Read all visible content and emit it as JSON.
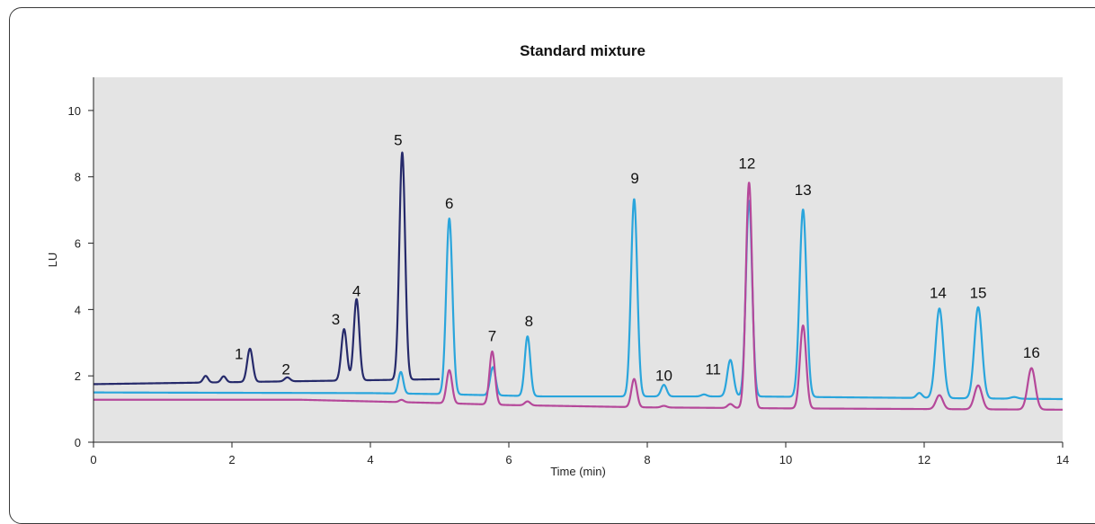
{
  "chart_data": {
    "type": "line",
    "title": "Standard mixture",
    "xlabel": "Time (min)",
    "ylabel": "LU",
    "xlim": [
      0,
      14
    ],
    "ylim": [
      0,
      11
    ],
    "xticks": [
      0,
      2,
      4,
      6,
      8,
      10,
      12,
      14
    ],
    "yticks": [
      0,
      2,
      4,
      6,
      8,
      10
    ],
    "grid": false,
    "plot_background": "#e4e4e4",
    "series": [
      {
        "color": "#262a6b",
        "x_range": [
          0,
          5.0
        ],
        "baseline": [
          [
            0,
            1.75
          ],
          [
            5.0,
            1.9
          ]
        ],
        "peaks": [
          {
            "t": 1.62,
            "h": 0.2,
            "w": 0.035
          },
          {
            "t": 1.88,
            "h": 0.18,
            "w": 0.035
          },
          {
            "t": 2.26,
            "h": 1.0,
            "w": 0.04
          },
          {
            "t": 2.8,
            "h": 0.12,
            "w": 0.04
          },
          {
            "t": 3.62,
            "h": 1.55,
            "w": 0.04
          },
          {
            "t": 3.8,
            "h": 2.45,
            "w": 0.04
          },
          {
            "t": 4.46,
            "h": 6.85,
            "w": 0.042
          }
        ]
      },
      {
        "color": "#2aa5dc",
        "x_range": [
          0,
          14
        ],
        "baseline": [
          [
            0,
            1.5
          ],
          [
            4.0,
            1.48
          ],
          [
            5.0,
            1.45
          ],
          [
            6.5,
            1.38
          ],
          [
            8.0,
            1.38
          ],
          [
            9.5,
            1.38
          ],
          [
            11.0,
            1.35
          ],
          [
            14.0,
            1.3
          ]
        ],
        "peaks": [
          {
            "t": 4.44,
            "h": 0.65,
            "w": 0.035
          },
          {
            "t": 5.14,
            "h": 5.3,
            "w": 0.045
          },
          {
            "t": 5.77,
            "h": 0.85,
            "w": 0.04
          },
          {
            "t": 6.27,
            "h": 1.8,
            "w": 0.04
          },
          {
            "t": 7.81,
            "h": 5.95,
            "w": 0.045
          },
          {
            "t": 8.24,
            "h": 0.35,
            "w": 0.04
          },
          {
            "t": 8.82,
            "h": 0.06,
            "w": 0.04
          },
          {
            "t": 9.2,
            "h": 1.1,
            "w": 0.045
          },
          {
            "t": 9.47,
            "h": 5.9,
            "w": 0.045
          },
          {
            "t": 10.25,
            "h": 5.65,
            "w": 0.05
          },
          {
            "t": 11.93,
            "h": 0.15,
            "w": 0.04
          },
          {
            "t": 12.22,
            "h": 2.7,
            "w": 0.055
          },
          {
            "t": 12.78,
            "h": 2.75,
            "w": 0.055
          },
          {
            "t": 13.3,
            "h": 0.05,
            "w": 0.05
          }
        ]
      },
      {
        "color": "#b5489a",
        "x_range": [
          0,
          14
        ],
        "baseline": [
          [
            0,
            1.28
          ],
          [
            3.0,
            1.28
          ],
          [
            4.2,
            1.22
          ],
          [
            5.0,
            1.18
          ],
          [
            6.0,
            1.12
          ],
          [
            8.0,
            1.05
          ],
          [
            10.0,
            1.02
          ],
          [
            12.0,
            1.0
          ],
          [
            14.0,
            0.98
          ]
        ],
        "peaks": [
          {
            "t": 4.45,
            "h": 0.07,
            "w": 0.035
          },
          {
            "t": 5.14,
            "h": 1.0,
            "w": 0.04
          },
          {
            "t": 5.76,
            "h": 1.6,
            "w": 0.04
          },
          {
            "t": 6.27,
            "h": 0.12,
            "w": 0.04
          },
          {
            "t": 7.81,
            "h": 0.85,
            "w": 0.04
          },
          {
            "t": 8.24,
            "h": 0.05,
            "w": 0.04
          },
          {
            "t": 9.2,
            "h": 0.12,
            "w": 0.04
          },
          {
            "t": 9.47,
            "h": 6.8,
            "w": 0.045
          },
          {
            "t": 10.25,
            "h": 2.5,
            "w": 0.045
          },
          {
            "t": 12.22,
            "h": 0.42,
            "w": 0.05
          },
          {
            "t": 12.78,
            "h": 0.72,
            "w": 0.055
          },
          {
            "t": 13.55,
            "h": 1.25,
            "w": 0.055
          }
        ]
      }
    ],
    "annotations": [
      {
        "text": "1",
        "x": 2.1,
        "y": 2.5
      },
      {
        "text": "2",
        "x": 2.78,
        "y": 2.05
      },
      {
        "text": "3",
        "x": 3.5,
        "y": 3.55
      },
      {
        "text": "4",
        "x": 3.8,
        "y": 4.4
      },
      {
        "text": "5",
        "x": 4.4,
        "y": 8.95
      },
      {
        "text": "6",
        "x": 5.14,
        "y": 7.05
      },
      {
        "text": "7",
        "x": 5.76,
        "y": 3.05
      },
      {
        "text": "8",
        "x": 6.29,
        "y": 3.5
      },
      {
        "text": "9",
        "x": 7.82,
        "y": 7.8
      },
      {
        "text": "10",
        "x": 8.24,
        "y": 1.85
      },
      {
        "text": "11",
        "x": 8.95,
        "y": 2.05
      },
      {
        "text": "12",
        "x": 9.44,
        "y": 8.25
      },
      {
        "text": "13",
        "x": 10.25,
        "y": 7.45
      },
      {
        "text": "14",
        "x": 12.2,
        "y": 4.35
      },
      {
        "text": "15",
        "x": 12.78,
        "y": 4.35
      },
      {
        "text": "16",
        "x": 13.55,
        "y": 2.55
      }
    ]
  }
}
